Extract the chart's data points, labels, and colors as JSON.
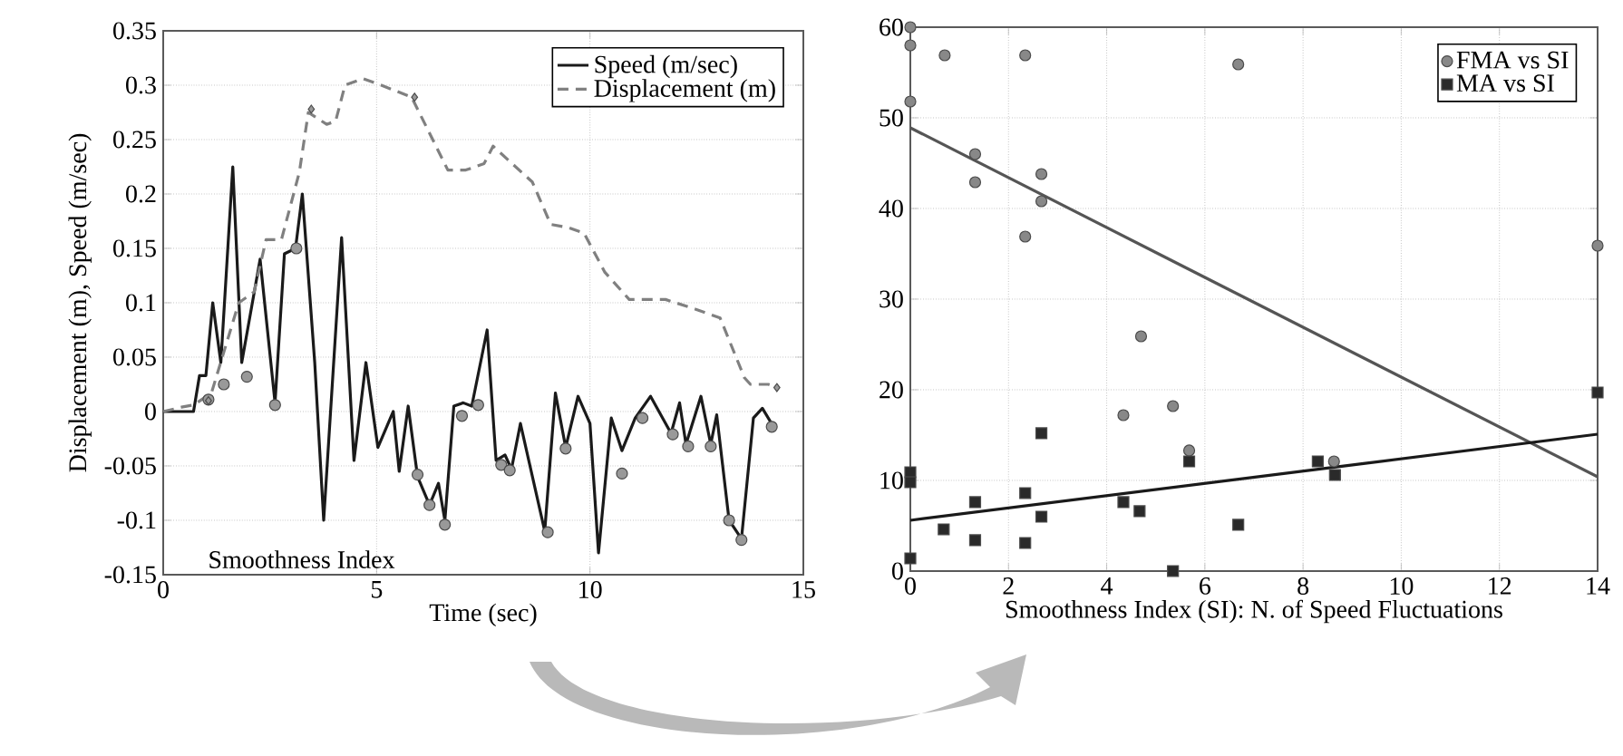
{
  "chart_data": [
    {
      "type": "line",
      "xlabel": "Time (sec)",
      "ylabel": "Displacement (m), Speed (m/sec)",
      "xlim": [
        0,
        15
      ],
      "ylim": [
        -0.15,
        0.35
      ],
      "xticks": [
        0,
        5,
        10,
        15
      ],
      "yticks": [
        -0.15,
        -0.1,
        -0.05,
        0,
        0.05,
        0.1,
        0.15,
        0.2,
        0.25,
        0.3,
        0.35
      ],
      "grid": true,
      "legend": "top right",
      "annotations": [
        "Smoothness Index"
      ],
      "series": [
        {
          "name": "Speed (m/sec)",
          "color": "#1a1a1a",
          "x": [
            0,
            0.71,
            0.85,
            1.0,
            1.16,
            1.35,
            1.63,
            1.84,
            2.27,
            2.62,
            2.84,
            3.1,
            3.26,
            3.55,
            3.76,
            4.18,
            4.47,
            4.75,
            5.03,
            5.39,
            5.53,
            5.74,
            5.96,
            6.24,
            6.45,
            6.6,
            6.81,
            7.03,
            7.23,
            7.59,
            7.8,
            8.01,
            8.16,
            8.37,
            8.94,
            9.19,
            9.43,
            9.72,
            10.0,
            10.2,
            10.5,
            10.75,
            11.06,
            11.42,
            11.9,
            12.1,
            12.25,
            12.6,
            12.83,
            12.97,
            13.26,
            13.55,
            13.83,
            14.04,
            14.3
          ],
          "values": [
            0,
            0,
            0.033,
            0.033,
            0.1,
            0.045,
            0.225,
            0.045,
            0.14,
            0.008,
            0.145,
            0.15,
            0.2,
            0.045,
            -0.1,
            0.16,
            -0.045,
            0.045,
            -0.033,
            0,
            -0.055,
            0.005,
            -0.06,
            -0.086,
            -0.066,
            -0.1,
            0.005,
            0.008,
            0.005,
            0.075,
            -0.045,
            -0.04,
            -0.053,
            -0.011,
            -0.11,
            0.017,
            -0.033,
            0.014,
            -0.011,
            -0.13,
            -0.006,
            -0.036,
            -0.006,
            0.014,
            -0.02,
            0.008,
            -0.03,
            0.014,
            -0.03,
            -0.003,
            -0.1,
            -0.117,
            -0.006,
            0.003,
            -0.014
          ]
        },
        {
          "name": "Displacement (m)",
          "line_style": "dashed",
          "color": "#808080",
          "x": [
            0,
            0.43,
            0.71,
            1.13,
            1.77,
            2.13,
            2.41,
            2.77,
            3.19,
            3.4,
            3.83,
            4.04,
            4.26,
            4.68,
            5.11,
            5.82,
            6.67,
            7.09,
            7.52,
            7.73,
            8.09,
            8.65,
            9.08,
            9.5,
            9.86,
            10.35,
            10.92,
            11.77,
            12.48,
            13.05,
            13.62,
            13.76,
            14.18,
            14.4
          ],
          "values": [
            0,
            0.004,
            0.006,
            0.017,
            0.1,
            0.11,
            0.158,
            0.158,
            0.22,
            0.275,
            0.264,
            0.267,
            0.3,
            0.306,
            0.3,
            0.289,
            0.222,
            0.222,
            0.228,
            0.244,
            0.231,
            0.211,
            0.172,
            0.169,
            0.164,
            0.128,
            0.103,
            0.103,
            0.094,
            0.086,
            0.031,
            0.025,
            0.025,
            0.022
          ]
        },
        {
          "type": "scatter",
          "marker": "circle",
          "color": "#999999",
          "x": [
            1.06,
            1.42,
            1.96,
            2.62,
            3.12,
            5.96,
            6.24,
            6.6,
            7.0,
            7.38,
            7.92,
            8.12,
            9.01,
            9.43,
            10.75,
            11.23,
            11.94,
            12.3,
            12.83,
            13.26,
            13.55,
            14.26
          ],
          "values": [
            0.011,
            0.025,
            0.032,
            0.006,
            0.15,
            -0.058,
            -0.086,
            -0.104,
            -0.004,
            0.006,
            -0.049,
            -0.054,
            -0.111,
            -0.034,
            -0.057,
            -0.006,
            -0.021,
            -0.032,
            -0.032,
            -0.1,
            -0.118,
            -0.014
          ]
        },
        {
          "type": "scatter",
          "marker": "diamond",
          "color": "#999999",
          "x": [
            1.06,
            3.47,
            5.89,
            14.38
          ],
          "values": [
            0.01,
            0.278,
            0.289,
            0.022
          ]
        }
      ]
    },
    {
      "type": "scatter",
      "xlabel": "Smoothness Index (SI): N. of Speed Fluctuations",
      "xlim": [
        0,
        14
      ],
      "ylim": [
        0,
        60
      ],
      "xticks": [
        0,
        2,
        4,
        6,
        8,
        10,
        12,
        14
      ],
      "yticks": [
        0,
        10,
        20,
        30,
        40,
        50,
        60
      ],
      "grid": true,
      "legend": "top right",
      "series": [
        {
          "name": "FMA vs SI",
          "marker": "circle",
          "color": "#888888",
          "x": [
            0,
            0,
            0,
            0.7,
            2.34,
            1.32,
            1.32,
            2.67,
            2.67,
            2.34,
            4.7,
            6.68,
            14.0,
            4.34,
            5.35,
            5.68,
            8.63
          ],
          "values": [
            60,
            58,
            51.8,
            56.9,
            56.9,
            46,
            42.9,
            43.8,
            40.8,
            36.9,
            25.9,
            55.9,
            35.9,
            17.2,
            18.2,
            13.3,
            12.1
          ]
        },
        {
          "name": "MA vs SI",
          "marker": "square",
          "color": "#2a2a2a",
          "x": [
            0,
            0,
            0,
            0.68,
            1.32,
            1.32,
            2.34,
            2.34,
            2.67,
            2.67,
            4.34,
            4.67,
            5.35,
            5.68,
            6.68,
            8.3,
            8.65,
            14.0
          ],
          "values": [
            10.9,
            9.8,
            1.4,
            4.6,
            7.6,
            3.4,
            8.6,
            3.1,
            15.2,
            6.0,
            7.6,
            6.6,
            0,
            12.1,
            5.1,
            12.1,
            10.6,
            19.7
          ]
        },
        {
          "type": "line",
          "color": "#555555",
          "x": [
            0,
            14
          ],
          "values": [
            48.9,
            10.4
          ]
        },
        {
          "type": "line",
          "color": "#1a1a1a",
          "x": [
            0,
            14
          ],
          "values": [
            5.6,
            15.1
          ]
        }
      ]
    }
  ]
}
